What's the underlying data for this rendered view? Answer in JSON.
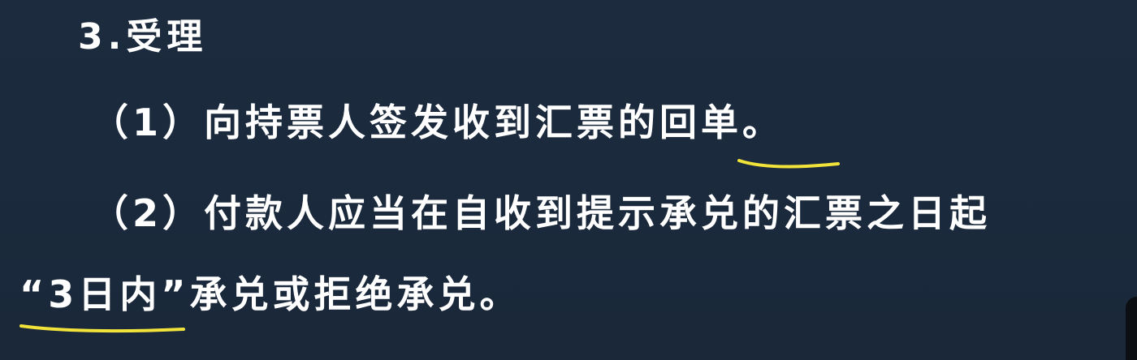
{
  "slide": {
    "heading": "3.受理",
    "item1": {
      "prefix": "（1）向持票人签发收到汇票的",
      "highlight": "回单",
      "suffix": "。"
    },
    "item2": {
      "line1": "（2）付款人应当在自收到提示承兑的汇票之日起",
      "highlight": "“3日内”",
      "line2_suffix": "承兑或拒绝承兑。"
    }
  },
  "colors": {
    "background": "#1c2b3e",
    "text": "#ffffff",
    "annotation": "#f2e33a"
  }
}
